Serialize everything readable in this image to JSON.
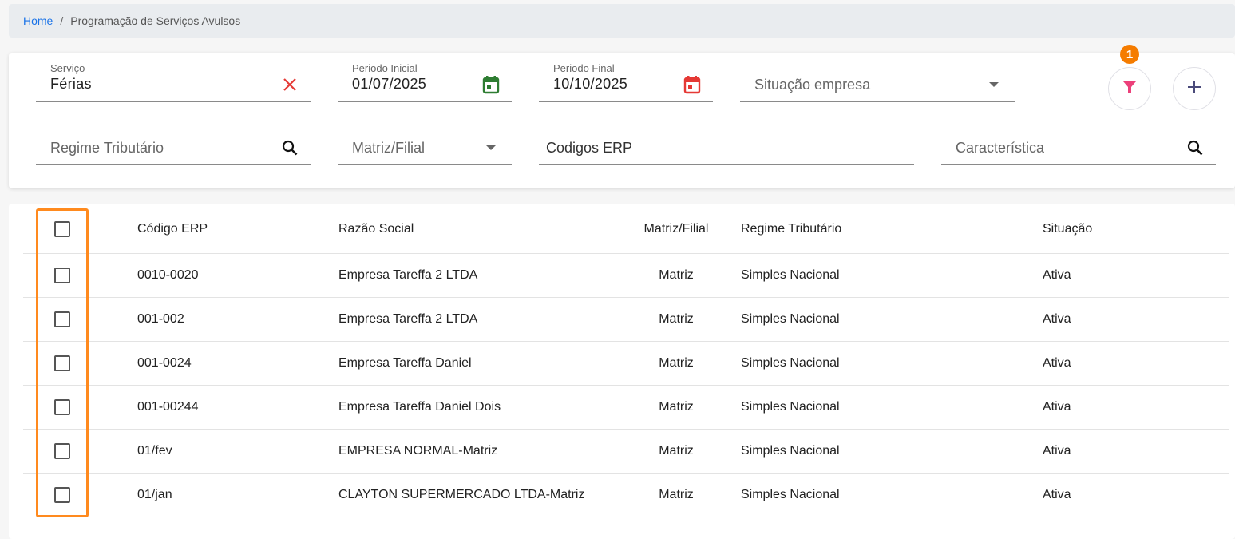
{
  "breadcrumb": {
    "home": "Home",
    "current": "Programação de Serviços Avulsos"
  },
  "filters": {
    "servico": {
      "label": "Serviço",
      "value": "Férias"
    },
    "periodo_inicial": {
      "label": "Periodo Inicial",
      "value": "01/07/2025"
    },
    "periodo_final": {
      "label": "Periodo Final",
      "value": "10/10/2025"
    },
    "situacao_empresa": {
      "placeholder": "Situação empresa"
    },
    "regime_tributario": {
      "placeholder": "Regime Tributário"
    },
    "matriz_filial": {
      "placeholder": "Matriz/Filial"
    },
    "codigos_erp": {
      "placeholder": "Codigos ERP"
    },
    "caracteristica": {
      "placeholder": "Característica"
    },
    "filter_badge": "1",
    "colors": {
      "clear": "#e53935",
      "cal_start": "#2e7d32",
      "cal_end": "#e53935",
      "filter": "#ec407a",
      "badge": "#f57c00",
      "highlight": "#ff8a1e"
    }
  },
  "table": {
    "headers": [
      "Código ERP",
      "Razão Social",
      "Matriz/Filial",
      "Regime Tributário",
      "Situação"
    ],
    "rows": [
      [
        "0010-0020",
        "Empresa Tareffa 2 LTDA",
        "Matriz",
        "Simples Nacional",
        "Ativa"
      ],
      [
        "001-002",
        "Empresa Tareffa 2 LTDA",
        "Matriz",
        "Simples Nacional",
        "Ativa"
      ],
      [
        "001-0024",
        "Empresa Tareffa Daniel",
        "Matriz",
        "Simples Nacional",
        "Ativa"
      ],
      [
        "001-00244",
        "Empresa Tareffa Daniel Dois",
        "Matriz",
        "Simples Nacional",
        "Ativa"
      ],
      [
        "01/fev",
        "EMPRESA NORMAL-Matriz",
        "Matriz",
        "Simples Nacional",
        "Ativa"
      ],
      [
        "01/jan",
        "CLAYTON SUPERMERCADO LTDA-Matriz",
        "Matriz",
        "Simples Nacional",
        "Ativa"
      ]
    ]
  }
}
